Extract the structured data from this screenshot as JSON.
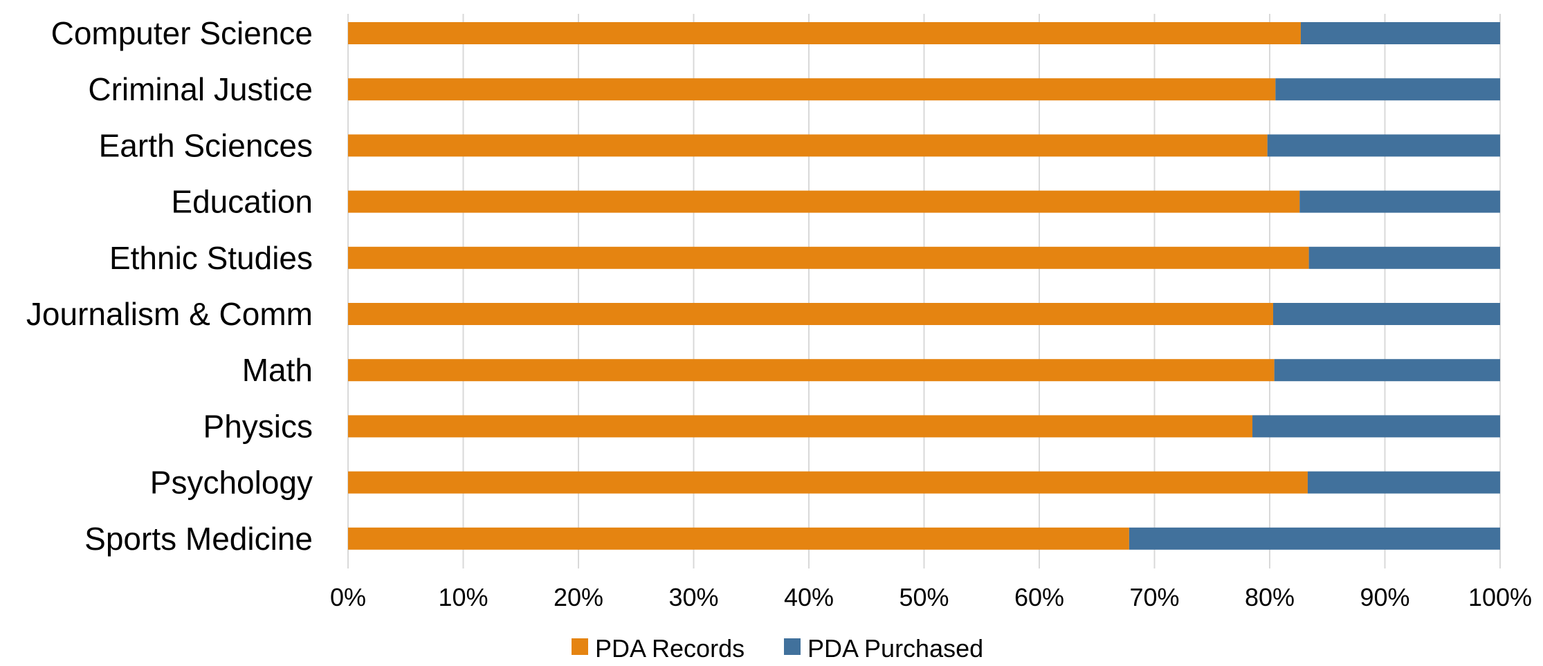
{
  "chart_data": {
    "type": "bar",
    "orientation": "horizontal",
    "stacked": "percent",
    "title": "",
    "xlabel": "",
    "ylabel": "",
    "categories": [
      "Computer Science",
      "Criminal Justice",
      "Earth Sciences",
      "Education",
      "Ethnic Studies",
      "Journalism & Comm",
      "Math",
      "Physics",
      "Psychology",
      "Sports Medicine"
    ],
    "series": [
      {
        "name": "PDA Records",
        "color": "#E58411",
        "values": [
          82.7,
          80.5,
          79.8,
          82.6,
          83.4,
          80.3,
          80.4,
          78.5,
          83.3,
          67.8
        ]
      },
      {
        "name": "PDA Purchased",
        "color": "#41719C",
        "values": [
          17.3,
          19.5,
          20.2,
          17.4,
          16.6,
          19.7,
          19.6,
          21.5,
          16.7,
          32.2
        ]
      }
    ],
    "xlim": [
      0,
      100
    ],
    "xticks": [
      "0%",
      "10%",
      "20%",
      "30%",
      "40%",
      "50%",
      "60%",
      "70%",
      "80%",
      "90%",
      "100%"
    ],
    "grid": "vertical",
    "gridline_color": "#D9D9D9",
    "legend": "bottom-center"
  }
}
